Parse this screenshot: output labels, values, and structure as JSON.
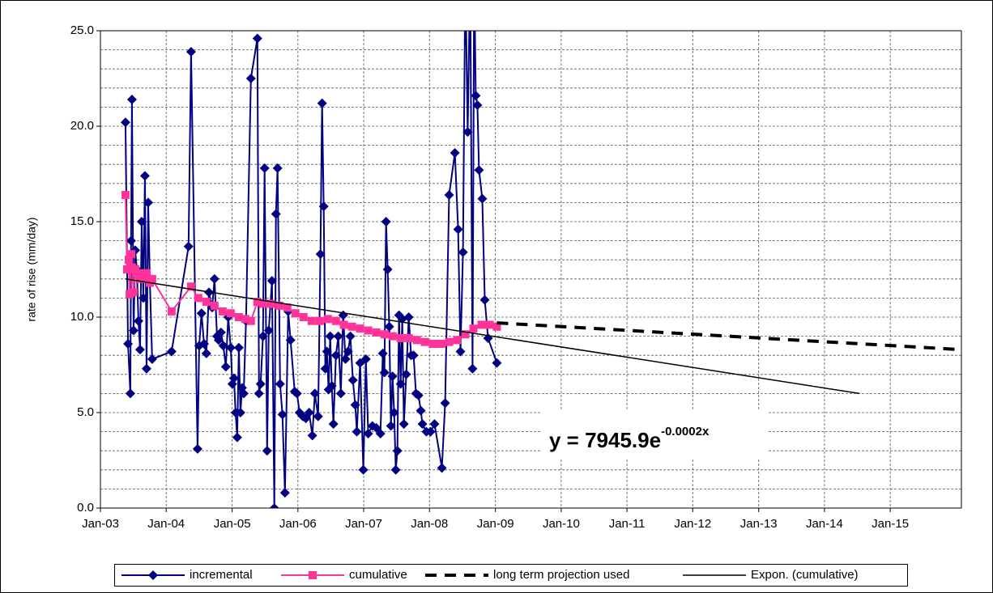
{
  "chart_data": {
    "type": "line",
    "y_label": "rate of rise (mm/day)",
    "xlim": [
      37622,
      42400
    ],
    "xticks": [
      {
        "value": 37622,
        "label": "Jan-03"
      },
      {
        "value": 37987,
        "label": "Jan-04"
      },
      {
        "value": 38353,
        "label": "Jan-05"
      },
      {
        "value": 38718,
        "label": "Jan-06"
      },
      {
        "value": 39083,
        "label": "Jan-07"
      },
      {
        "value": 39448,
        "label": "Jan-08"
      },
      {
        "value": 39814,
        "label": "Jan-09"
      },
      {
        "value": 40179,
        "label": "Jan-10"
      },
      {
        "value": 40544,
        "label": "Jan-11"
      },
      {
        "value": 40909,
        "label": "Jan-12"
      },
      {
        "value": 41275,
        "label": "Jan-13"
      },
      {
        "value": 41640,
        "label": "Jan-14"
      },
      {
        "value": 42005,
        "label": "Jan-15"
      }
    ],
    "ylim": [
      0,
      25
    ],
    "yticks": [
      {
        "value": 0,
        "label": "0.0"
      },
      {
        "value": 5,
        "label": "5.0"
      },
      {
        "value": 10,
        "label": "10.0"
      },
      {
        "value": 15,
        "label": "15.0"
      },
      {
        "value": 20,
        "label": "20.0"
      },
      {
        "value": 25,
        "label": "25.0"
      }
    ],
    "y_minor_ticks": [
      1,
      2,
      3,
      4,
      6,
      7,
      8,
      9,
      11,
      12,
      13,
      14,
      16,
      17,
      18,
      19,
      21,
      22,
      23,
      24
    ],
    "grid": true,
    "legend": "bottom",
    "annotation": {
      "text": "y = 7945.9e",
      "superscript": "-0.0002x"
    },
    "series": [
      {
        "name": "incremental",
        "color": "#000080",
        "marker": "diamond",
        "dash": false,
        "x": [
          37761,
          37775,
          37788,
          37792,
          37797,
          37806,
          37815,
          37824,
          37833,
          37842,
          37851,
          37860,
          37869,
          37878,
          37887,
          37896,
          37909,
          38017,
          38111,
          38125,
          38161,
          38170,
          38183,
          38197,
          38210,
          38224,
          38242,
          38255,
          38269,
          38278,
          38291,
          38304,
          38318,
          38331,
          38345,
          38354,
          38363,
          38372,
          38381,
          38390,
          38399,
          38408,
          38417,
          38430,
          38457,
          38493,
          38502,
          38511,
          38524,
          38533,
          38547,
          38556,
          38574,
          38587,
          38596,
          38605,
          38619,
          38632,
          38646,
          38664,
          38677,
          38700,
          38713,
          38727,
          38745,
          38762,
          38780,
          38798,
          38812,
          38830,
          38843,
          38852,
          38861,
          38870,
          38879,
          38888,
          38897,
          38906,
          38915,
          38929,
          38942,
          38956,
          38969,
          38982,
          38996,
          39009,
          39023,
          39036,
          39045,
          39063,
          39081,
          39095,
          39108,
          39131,
          39153,
          39176,
          39189,
          39198,
          39207,
          39216,
          39225,
          39234,
          39243,
          39252,
          39261,
          39270,
          39279,
          39288,
          39297,
          39306,
          39319,
          39333,
          39346,
          39360,
          39373,
          39387,
          39400,
          39409,
          39431,
          39454,
          39476,
          39517,
          39535,
          39557,
          39589,
          39607,
          39620,
          39634,
          39647,
          39660,
          39674,
          39687,
          39696,
          39705,
          39714,
          39723,
          39741,
          39755,
          39773,
          39822
        ],
        "values": [
          20.2,
          8.6,
          6.0,
          14.0,
          21.4,
          9.3,
          13.5,
          12.5,
          9.8,
          8.3,
          15.0,
          11.0,
          17.4,
          7.3,
          16.0,
          12.0,
          7.8,
          8.2,
          13.7,
          23.9,
          3.1,
          8.5,
          10.2,
          8.6,
          8.1,
          11.3,
          10.5,
          12.0,
          9.0,
          8.8,
          9.2,
          8.5,
          7.4,
          10.0,
          8.4,
          6.5,
          6.8,
          5.0,
          3.7,
          8.4,
          5.0,
          6.3,
          6.0,
          9.8,
          22.5,
          24.6,
          6.0,
          6.5,
          9.0,
          17.8,
          3.0,
          9.3,
          11.9,
          0.0,
          15.4,
          17.8,
          6.5,
          4.9,
          0.8,
          10.3,
          8.8,
          6.1,
          6.0,
          5.0,
          4.8,
          4.7,
          5.0,
          3.8,
          6.0,
          4.8,
          13.3,
          21.2,
          15.8,
          7.3,
          8.2,
          6.2,
          9.0,
          6.4,
          4.4,
          8.0,
          9.0,
          6.0,
          10.1,
          7.8,
          8.2,
          9.0,
          6.7,
          5.4,
          4.0,
          7.6,
          2.0,
          7.8,
          3.9,
          4.3,
          4.2,
          3.9,
          8.1,
          7.1,
          15.0,
          12.5,
          9.5,
          4.3,
          6.9,
          5.0,
          2.0,
          3.0,
          10.1,
          6.5,
          9.9,
          4.4,
          7.0,
          10.0,
          8.0,
          8.0,
          6.0,
          5.9,
          5.1,
          4.4,
          4.0,
          4.0,
          4.4,
          2.1,
          5.5,
          16.4,
          18.6,
          14.6,
          8.2,
          13.4,
          28.0,
          19.7,
          28.0,
          7.3,
          28.0,
          21.6,
          21.1,
          17.7,
          16.2,
          10.9,
          8.9,
          7.6
        ]
      },
      {
        "name": "cumulative",
        "color": "#ff3399",
        "marker": "square",
        "dash": false,
        "x": [
          37761,
          37770,
          37779,
          37784,
          37793,
          37797,
          37806,
          37815,
          37824,
          37833,
          37842,
          37851,
          37860,
          37869,
          37878,
          37887,
          37896,
          37909,
          38017,
          38125,
          38165,
          38210,
          38255,
          38300,
          38345,
          38390,
          38426,
          38457,
          38493,
          38524,
          38569,
          38614,
          38659,
          38704,
          38749,
          38794,
          38839,
          38884,
          38929,
          38973,
          39018,
          39063,
          39108,
          39153,
          39198,
          39243,
          39288,
          39333,
          39378,
          39422,
          39467,
          39512,
          39557,
          39602,
          39647,
          39692,
          39737,
          39782,
          39822
        ],
        "values": [
          16.4,
          12.5,
          13.0,
          11.2,
          13.3,
          12.6,
          11.3,
          12.5,
          12.3,
          12.2,
          12.0,
          12.1,
          12.3,
          12.0,
          12.3,
          12.0,
          11.8,
          12.0,
          10.3,
          11.6,
          11.0,
          10.8,
          10.6,
          10.3,
          10.2,
          10.0,
          9.9,
          9.8,
          10.8,
          10.7,
          10.7,
          10.6,
          10.5,
          10.2,
          10.0,
          9.8,
          9.8,
          9.9,
          9.8,
          9.6,
          9.5,
          9.4,
          9.3,
          9.2,
          9.1,
          9.0,
          8.9,
          8.9,
          8.8,
          8.7,
          8.6,
          8.6,
          8.7,
          8.8,
          9.1,
          9.4,
          9.6,
          9.6,
          9.5
        ]
      },
      {
        "name": "long term projection used",
        "color": "#000000",
        "marker": null,
        "dash": true,
        "x": [
          39822,
          42395
        ],
        "values": [
          9.7,
          8.3
        ]
      },
      {
        "name": "Expon. (cumulative)",
        "color": "#000000",
        "marker": null,
        "dash": false,
        "x": [
          37761,
          41834
        ],
        "values": [
          12.0,
          6.0
        ]
      }
    ]
  }
}
